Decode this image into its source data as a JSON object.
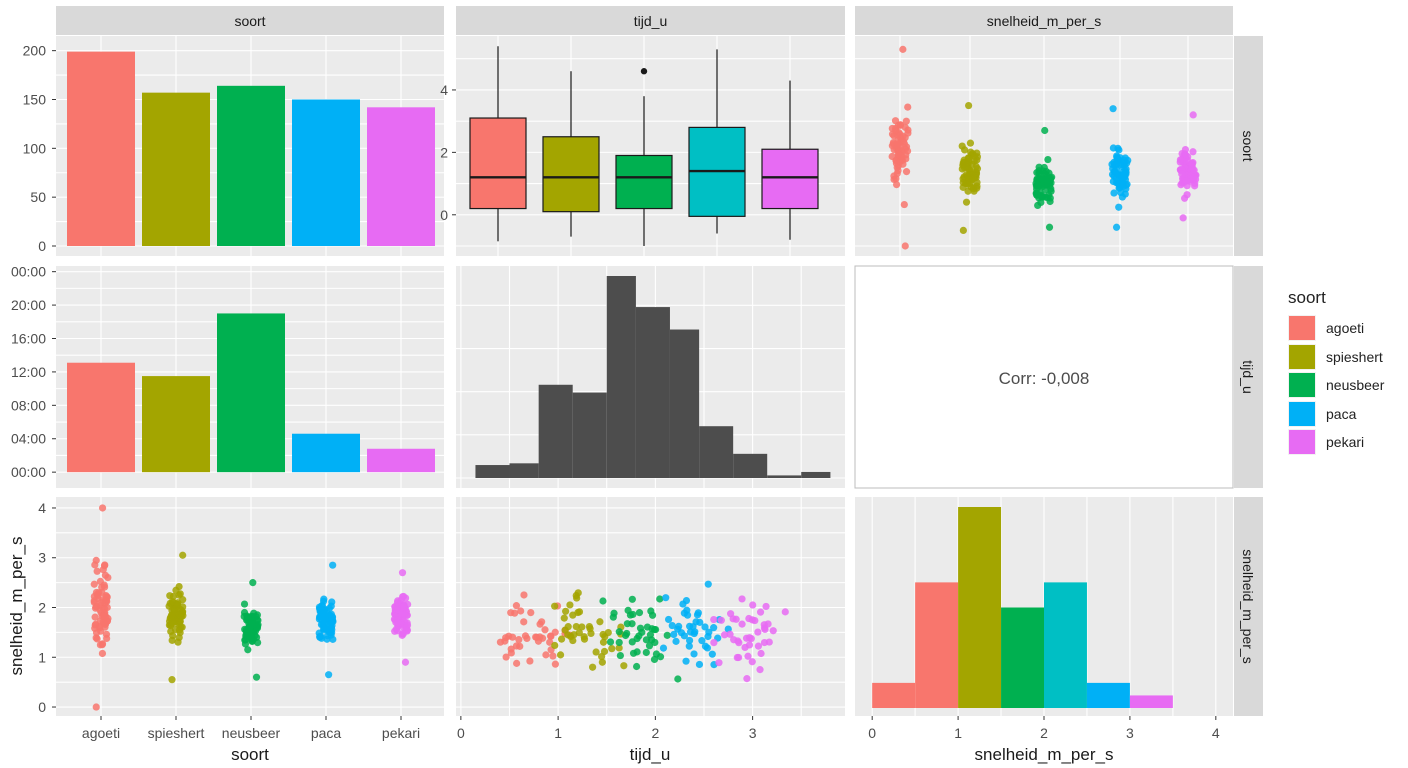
{
  "strips": {
    "top": [
      "soort",
      "tijd_u",
      "snelheid_m_per_s"
    ],
    "right": [
      "soort",
      "tijd_u",
      "snelheid_m_per_s"
    ]
  },
  "axis_titles": {
    "x": [
      "soort",
      "tijd_u",
      "snelheid_m_per_s"
    ],
    "y": "snelheid_m_per_s"
  },
  "legend": {
    "title": "soort",
    "items": [
      {
        "label": "agoeti",
        "color": "#f8766d"
      },
      {
        "label": "spieshert",
        "color": "#a3a500"
      },
      {
        "label": "neusbeer",
        "color": "#00b050"
      },
      {
        "label": "paca",
        "color": "#00b0f6"
      },
      {
        "label": "pekari",
        "color": "#e76bf3"
      }
    ]
  },
  "correlation_text": "Corr: -0,008",
  "chart_data": [
    {
      "type": "bar",
      "panel": "soort-soort",
      "categories": [
        "agoeti",
        "spieshert",
        "neusbeer",
        "paca",
        "pekari"
      ],
      "values": [
        199,
        157,
        164,
        150,
        142
      ],
      "ylim": [
        0,
        215
      ],
      "yticks": [
        0,
        50,
        100,
        150,
        200
      ]
    },
    {
      "type": "box",
      "panel": "tijd_u-vs-soort",
      "categories": [
        "agoeti",
        "spieshert",
        "neusbeer",
        "paca",
        "pekari"
      ],
      "boxes": [
        {
          "low": -0.85,
          "q1": 0.2,
          "median": 1.2,
          "q3": 3.1,
          "high": 5.4,
          "outliers": []
        },
        {
          "low": -0.7,
          "q1": 0.1,
          "median": 1.2,
          "q3": 2.5,
          "high": 4.6,
          "outliers": []
        },
        {
          "low": -1.0,
          "q1": 0.2,
          "median": 1.2,
          "q3": 1.9,
          "high": 3.8,
          "outliers": [
            4.6
          ]
        },
        {
          "low": -0.6,
          "q1": -0.05,
          "median": 1.4,
          "q3": 2.8,
          "high": 5.3,
          "outliers": []
        },
        {
          "low": -0.8,
          "q1": 0.2,
          "median": 1.2,
          "q3": 2.1,
          "high": 4.3,
          "outliers": []
        }
      ],
      "ylim": [
        -1.0,
        5.6
      ],
      "yticks": [
        0,
        2,
        4
      ]
    },
    {
      "type": "scatter",
      "panel": "snelheid_m_per_s-vs-soort-top",
      "note": "jittered strip",
      "categories": [
        "agoeti",
        "spieshert",
        "neusbeer",
        "paca",
        "pekari"
      ],
      "ranges": [
        [
          -1.0,
          5.3
        ],
        [
          -0.5,
          3.5
        ],
        [
          -0.4,
          2.7
        ],
        [
          -0.4,
          3.4
        ],
        [
          -0.1,
          3.2
        ]
      ],
      "ylim": [
        -1.0,
        5.6
      ]
    },
    {
      "type": "bar",
      "panel": "tijd_u-vs-soort-middle",
      "categories": [
        "agoeti",
        "spieshert",
        "neusbeer",
        "paca",
        "pekari"
      ],
      "values": [
        13.1,
        11.5,
        19.0,
        4.6,
        2.8
      ],
      "ylim": [
        -0.7,
        24.2
      ],
      "yticks": [
        0,
        4,
        8,
        12,
        16,
        20,
        24
      ],
      "tick_labels": [
        "00:00",
        "04:00",
        "08:00",
        "12:00",
        "16:00",
        "20:00",
        "00:00"
      ]
    },
    {
      "type": "bar",
      "panel": "tijd_u-histogram",
      "bins": [
        [
          0.15,
          0.5
        ],
        [
          0.5,
          0.8
        ],
        [
          0.8,
          1.15
        ],
        [
          1.15,
          1.5
        ],
        [
          1.5,
          1.8
        ],
        [
          1.8,
          2.15
        ],
        [
          2.15,
          2.45
        ],
        [
          2.45,
          2.8
        ],
        [
          2.8,
          3.15
        ],
        [
          3.15,
          3.5
        ],
        [
          3.5,
          3.8
        ]
      ],
      "values": [
        1.5,
        1.7,
        10.8,
        9.9,
        23.4,
        19.8,
        17.2,
        6.0,
        2.8,
        0.3,
        0.7
      ],
      "xlim": [
        -0.05,
        3.95
      ],
      "ylim": [
        0,
        23.4
      ]
    },
    {
      "type": "scatter",
      "panel": "snelheid_m_per_s-vs-soort",
      "categories": [
        "agoeti",
        "spieshert",
        "neusbeer",
        "paca",
        "pekari"
      ],
      "ranges": [
        [
          0.0,
          4.0
        ],
        [
          0.55,
          3.05
        ],
        [
          0.6,
          2.5
        ],
        [
          0.65,
          2.85
        ],
        [
          0.9,
          2.7
        ]
      ],
      "ylim": [
        -0.1,
        4.1
      ],
      "yticks": [
        0,
        1,
        2,
        3,
        4
      ]
    },
    {
      "type": "scatter",
      "panel": "snelheid_m_per_s-vs-tijd_u",
      "note": "points coloured by soort",
      "xlim": [
        -0.05,
        3.95
      ],
      "ylim": [
        -0.1,
        4.1
      ],
      "xticks": [
        0,
        1,
        2,
        3
      ]
    },
    {
      "type": "bar",
      "panel": "snelheid_m_per_s-histogram",
      "bins": [
        [
          0,
          0.5
        ],
        [
          0.5,
          1.0
        ],
        [
          1.0,
          1.5
        ],
        [
          1.5,
          2.0
        ],
        [
          2.0,
          2.5
        ],
        [
          2.5,
          3.0
        ],
        [
          3.0,
          3.5
        ]
      ],
      "values": [
        0.5,
        2.5,
        4.0,
        2.0,
        2.5,
        0.5,
        0.25
      ],
      "colors": [
        "#f8766d",
        "#f8766d",
        "#a3a500",
        "#00b050",
        "#00bfc4",
        "#00b0f6",
        "#e76bf3"
      ],
      "xlim": [
        -0.2,
        4.2
      ],
      "xticks": [
        0,
        1,
        2,
        3,
        4
      ],
      "ylim": [
        0,
        4.0
      ]
    }
  ]
}
